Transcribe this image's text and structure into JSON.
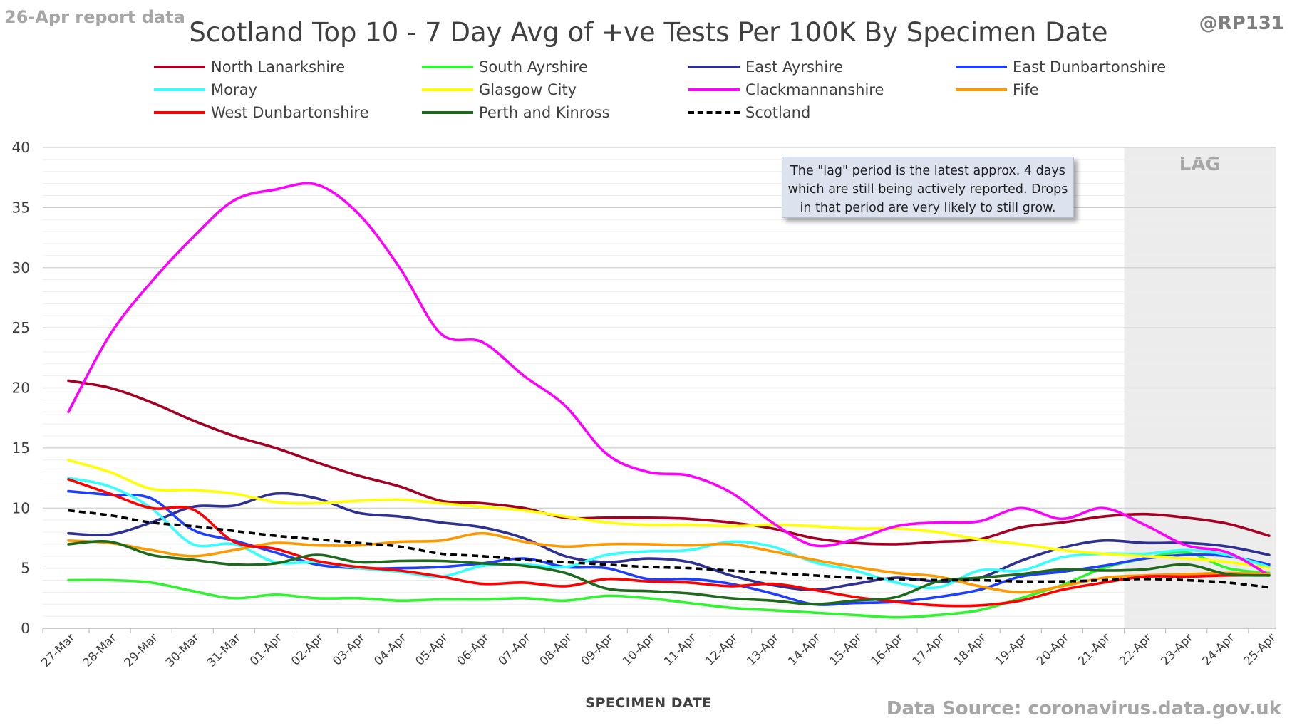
{
  "header": {
    "report_label": "26-Apr report data",
    "handle": "@RP131",
    "source": "Data Source: coronavirus.data.gov.uk"
  },
  "note_text": "The \"lag\" period is the latest approx. 4 days which are still being actively reported.  Drops in that period are very likely to still grow.",
  "chart_data": {
    "type": "line",
    "title": "Scotland Top 10 - 7 Day Avg of +ve Tests Per 100K By Specimen Date",
    "xlabel": "SPECIMEN DATE",
    "ylabel": "",
    "ylim": [
      0,
      40
    ],
    "yticks": [
      0,
      5,
      10,
      15,
      20,
      25,
      30,
      35,
      40
    ],
    "grid": true,
    "legend_position": "top",
    "lag_label": "LAG",
    "lag_range": [
      "22-Apr",
      "25-Apr"
    ],
    "categories": [
      "27-Mar",
      "28-Mar",
      "29-Mar",
      "30-Mar",
      "31-Mar",
      "01-Apr",
      "02-Apr",
      "03-Apr",
      "04-Apr",
      "05-Apr",
      "06-Apr",
      "07-Apr",
      "08-Apr",
      "09-Apr",
      "10-Apr",
      "11-Apr",
      "12-Apr",
      "13-Apr",
      "14-Apr",
      "15-Apr",
      "16-Apr",
      "17-Apr",
      "18-Apr",
      "19-Apr",
      "20-Apr",
      "21-Apr",
      "22-Apr",
      "23-Apr",
      "24-Apr",
      "25-Apr"
    ],
    "series": [
      {
        "name": "North Lanarkshire",
        "color": "#a50021",
        "dash": false,
        "values": [
          20.6,
          20.0,
          18.8,
          17.3,
          16.0,
          15.0,
          13.8,
          12.7,
          11.8,
          10.6,
          10.4,
          10.0,
          9.2,
          9.2,
          9.2,
          9.1,
          8.8,
          8.3,
          7.5,
          7.1,
          7.0,
          7.2,
          7.4,
          8.4,
          8.8,
          9.3,
          9.5,
          9.2,
          8.7,
          7.7
        ]
      },
      {
        "name": "South Ayrshire",
        "color": "#2ef52e",
        "dash": false,
        "values": [
          4.0,
          4.0,
          3.8,
          3.1,
          2.5,
          2.8,
          2.5,
          2.5,
          2.3,
          2.4,
          2.4,
          2.5,
          2.3,
          2.7,
          2.5,
          2.1,
          1.7,
          1.5,
          1.3,
          1.1,
          0.9,
          1.1,
          1.5,
          2.5,
          3.6,
          5.0,
          5.8,
          6.3,
          5.0,
          4.6
        ]
      },
      {
        "name": "East Ayrshire",
        "color": "#2e3192",
        "dash": false,
        "values": [
          7.9,
          7.8,
          8.8,
          10.1,
          10.2,
          11.2,
          10.8,
          9.6,
          9.3,
          8.8,
          8.4,
          7.5,
          6.0,
          5.5,
          5.8,
          5.5,
          4.4,
          3.6,
          3.2,
          3.7,
          4.2,
          3.9,
          4.2,
          5.6,
          6.7,
          7.3,
          7.1,
          7.1,
          6.8,
          6.1
        ]
      },
      {
        "name": "East Dunbartonshire",
        "color": "#1f3fff",
        "dash": false,
        "values": [
          11.4,
          11.1,
          10.8,
          8.2,
          7.3,
          6.3,
          5.3,
          5.0,
          5.0,
          5.1,
          5.4,
          5.8,
          5.1,
          5.0,
          4.1,
          4.1,
          3.7,
          2.9,
          2.0,
          2.1,
          2.2,
          2.6,
          3.2,
          4.3,
          4.7,
          5.2,
          5.8,
          6.1,
          6.0,
          5.3
        ]
      },
      {
        "name": "Moray",
        "color": "#33ffff",
        "dash": false,
        "values": [
          12.5,
          11.8,
          10.0,
          7.0,
          7.0,
          5.5,
          5.5,
          5.0,
          4.7,
          4.3,
          5.2,
          5.3,
          5.1,
          6.1,
          6.4,
          6.5,
          7.2,
          6.8,
          5.5,
          4.8,
          3.8,
          3.4,
          4.8,
          4.8,
          5.9,
          6.2,
          6.2,
          6.5,
          6.1,
          5.1
        ]
      },
      {
        "name": "Glasgow City",
        "color": "#ffff00",
        "dash": false,
        "values": [
          14.0,
          13.0,
          11.6,
          11.5,
          11.2,
          10.5,
          10.4,
          10.6,
          10.7,
          10.4,
          10.1,
          9.8,
          9.3,
          8.8,
          8.6,
          8.6,
          8.5,
          8.6,
          8.5,
          8.3,
          8.3,
          8.0,
          7.4,
          7.0,
          6.5,
          6.2,
          6.0,
          5.8,
          5.5,
          5.0
        ]
      },
      {
        "name": "Clackmannanshire",
        "color": "#ff00ff",
        "dash": false,
        "values": [
          18.0,
          24.4,
          28.8,
          32.5,
          35.6,
          36.5,
          36.9,
          34.5,
          30.0,
          24.5,
          23.8,
          21.0,
          18.5,
          14.5,
          13.0,
          12.7,
          11.3,
          8.8,
          6.9,
          7.4,
          8.5,
          8.8,
          8.9,
          10.0,
          9.1,
          10.0,
          8.6,
          6.9,
          6.3,
          4.4
        ]
      },
      {
        "name": "Fife",
        "color": "#ff9900",
        "dash": false,
        "values": [
          7.3,
          7.1,
          6.5,
          6.0,
          6.5,
          7.1,
          6.9,
          6.9,
          7.2,
          7.3,
          7.9,
          7.2,
          6.8,
          7.0,
          7.0,
          6.9,
          7.0,
          6.4,
          5.7,
          5.1,
          4.6,
          4.3,
          3.5,
          3.0,
          3.5,
          4.2,
          4.4,
          4.5,
          4.6,
          4.5
        ]
      },
      {
        "name": "West Dunbartonshire",
        "color": "#ff0000",
        "dash": false,
        "values": [
          12.4,
          11.2,
          10.0,
          9.9,
          7.2,
          6.6,
          5.6,
          5.1,
          4.8,
          4.3,
          3.7,
          3.8,
          3.5,
          4.1,
          3.9,
          3.8,
          3.5,
          3.7,
          3.2,
          2.6,
          2.2,
          1.9,
          1.9,
          2.3,
          3.2,
          3.8,
          4.3,
          4.3,
          4.4,
          4.4
        ]
      },
      {
        "name": "Perth and Kinross",
        "color": "#1d6a1d",
        "dash": false,
        "values": [
          7.0,
          7.2,
          6.1,
          5.7,
          5.3,
          5.4,
          6.1,
          5.5,
          5.6,
          5.6,
          5.4,
          5.2,
          4.6,
          3.3,
          3.1,
          2.9,
          2.5,
          2.3,
          2.0,
          2.3,
          2.6,
          3.9,
          4.2,
          4.5,
          4.9,
          4.8,
          4.9,
          5.3,
          4.5,
          4.4
        ]
      },
      {
        "name": "Scotland",
        "color": "#000000",
        "dash": true,
        "values": [
          9.8,
          9.4,
          8.8,
          8.5,
          8.1,
          7.7,
          7.4,
          7.1,
          6.8,
          6.2,
          6.0,
          5.7,
          5.5,
          5.3,
          5.1,
          5.0,
          4.8,
          4.6,
          4.4,
          4.2,
          4.1,
          4.0,
          4.0,
          3.9,
          3.9,
          4.0,
          4.1,
          4.0,
          3.8,
          3.4
        ]
      }
    ]
  }
}
